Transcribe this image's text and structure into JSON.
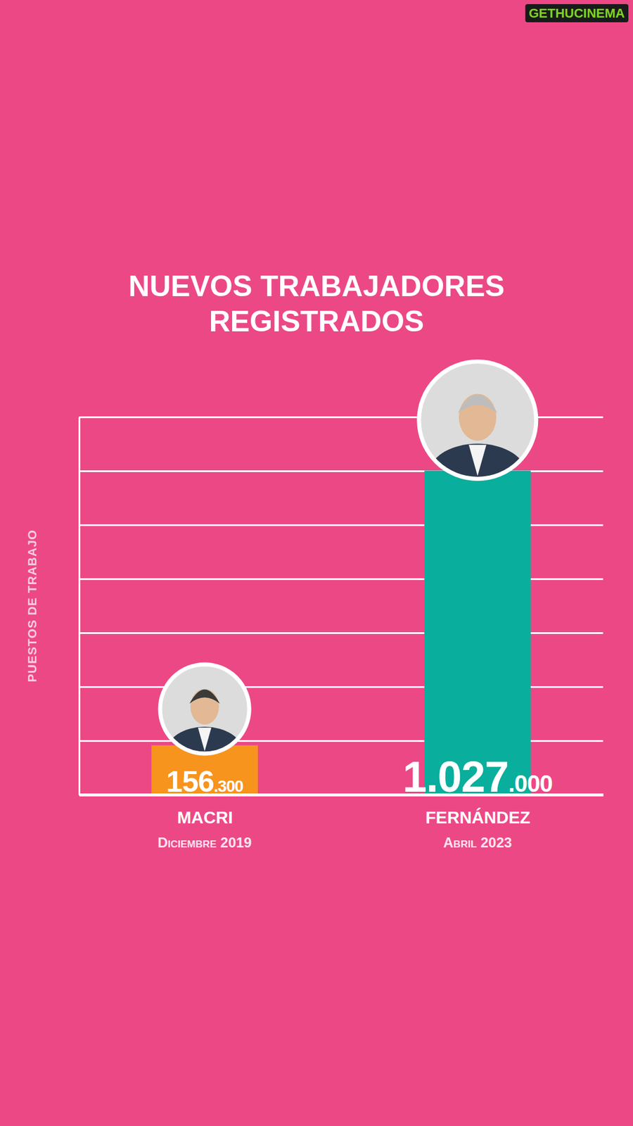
{
  "watermark": "GETHUCINEMA",
  "chart_data": {
    "type": "bar",
    "title": "NUEVOS TRABAJADORES REGISTRADOS",
    "y_label": "PUESTOS DE TRABAJO",
    "categories": [
      "MACRI",
      "FERNÁNDEZ"
    ],
    "category_dates": [
      "Diciembre 2019",
      "Abril 2023"
    ],
    "values": [
      156300,
      1027000
    ],
    "value_labels": [
      "156.300",
      "1.027.000"
    ],
    "colors": [
      "#f7941d",
      "#0aae9c"
    ],
    "ylim": [
      0,
      1197000
    ],
    "yticks": [
      0,
      171000,
      342000,
      513000,
      684000,
      855000,
      1026000,
      1197000
    ],
    "grid": true,
    "tick_labels": "x",
    "data_labels": true
  }
}
